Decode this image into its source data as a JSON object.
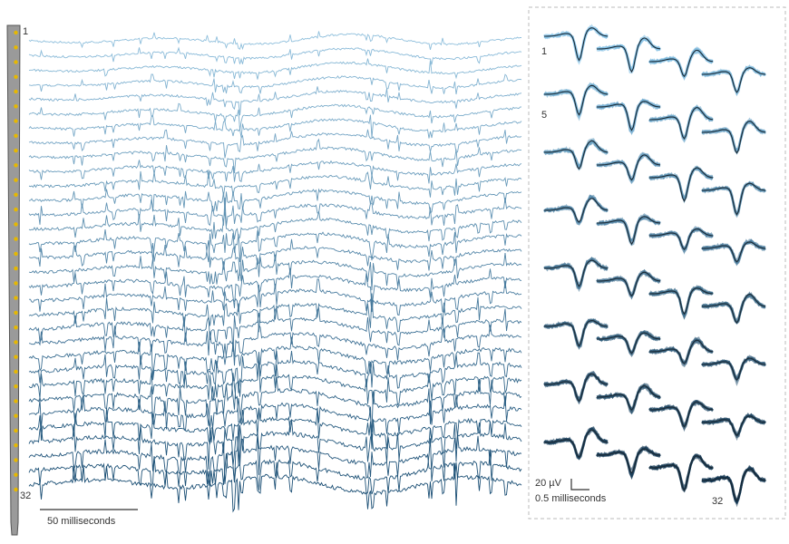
{
  "figure": {
    "probe": {
      "label_top": "1",
      "label_bottom": "32",
      "site_count": 32,
      "shank_color": "#9a9a9a",
      "site_color": "#e6b800"
    },
    "traces": {
      "channel_count": 32,
      "color_top": "#8fbfdc",
      "color_bottom": "#1a4e74",
      "scale_bar_label": "50 milliseconds"
    },
    "waveforms": {
      "labels": [
        "1",
        "5",
        "32"
      ],
      "scale_amplitude_label": "20 µV",
      "scale_time_label": "0.5 milliseconds",
      "color_light": "#7fc0e6",
      "color_dark": "#0a2e4a",
      "mean_color": "#1b2a35",
      "panel_border_color": "#bbbbbb"
    }
  }
}
